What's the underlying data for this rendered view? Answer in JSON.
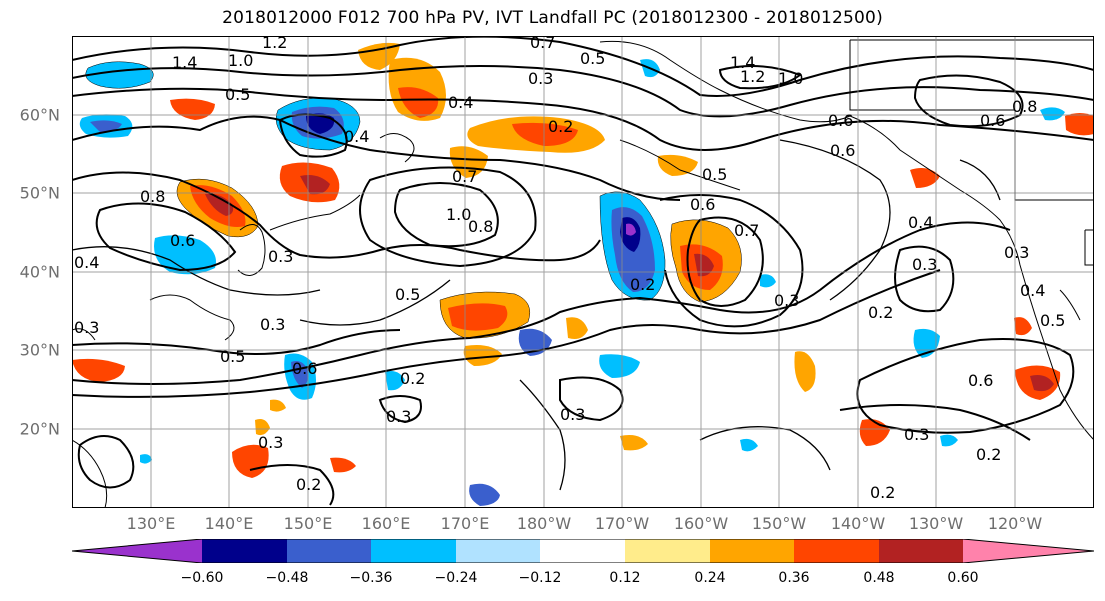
{
  "title": "2018012000 F012 700 hPa PV, IVT Landfall PC (2018012300 - 2018012500)",
  "map": {
    "lat_labels": [
      "60°N",
      "50°N",
      "40°N",
      "30°N",
      "20°N"
    ],
    "lon_labels": [
      "130°E",
      "140°E",
      "150°E",
      "160°E",
      "170°E",
      "180°W",
      "170°W",
      "160°W",
      "150°W",
      "140°W",
      "130°W",
      "120°W"
    ],
    "contour_labels": [
      "1.4",
      "1.0",
      "1.2",
      "0.7",
      "0.5",
      "0.3",
      "0.5",
      "0.4",
      "0.2",
      "1.4",
      "1.2",
      "1.0",
      "0.6",
      "0.8",
      "0.6",
      "0.6",
      "0.5",
      "0.8",
      "0.8",
      "1.0",
      "0.6",
      "0.3",
      "0.7",
      "0.6",
      "0.7",
      "0.5",
      "0.5",
      "0.3",
      "0.2",
      "0.4",
      "0.3",
      "0.3",
      "0.2",
      "0.3",
      "0.4",
      "0.5",
      "0.6",
      "0.3",
      "0.2",
      "0.3",
      "0.2",
      "0.3",
      "0.3",
      "0.2",
      "0.6",
      "0.3",
      "0.4",
      "0.2",
      "0.4"
    ]
  },
  "colorbar": {
    "colors": [
      "#9a32cd",
      "#00008b",
      "#3a5fcd",
      "#00bfff",
      "#b0e2ff",
      "#ffffff",
      "#ffec8b",
      "#ffa500",
      "#ff4500",
      "#b22222",
      "#ff82ab"
    ],
    "tick_labels": [
      "−0.60",
      "−0.48",
      "−0.36",
      "−0.24",
      "−0.12",
      "0.12",
      "0.24",
      "0.36",
      "0.48",
      "0.60"
    ]
  }
}
